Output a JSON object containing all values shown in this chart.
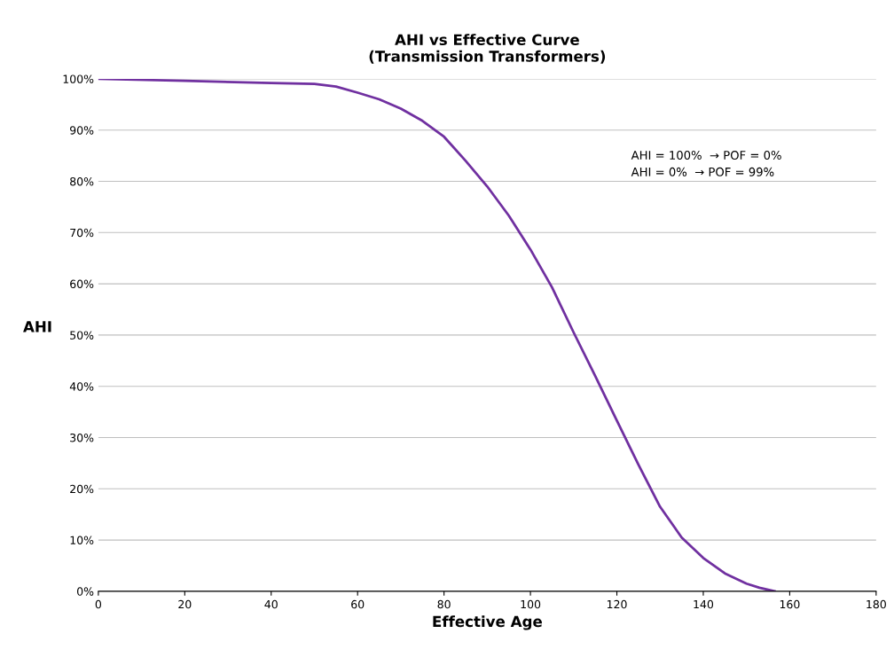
{
  "chart_data": {
    "type": "line",
    "title": "AHI vs Effective Curve\n(Transmission Transformers)",
    "xlabel": "Effective Age",
    "ylabel": "AHI",
    "x": [
      0,
      20,
      40,
      50,
      55,
      60,
      65,
      70,
      75,
      80,
      85,
      90,
      95,
      100,
      105,
      110,
      115,
      120,
      125,
      130,
      135,
      140,
      145,
      150,
      153,
      156.5
    ],
    "series": [
      {
        "color": "#7030a0",
        "values": [
          100,
          99.6,
          99.2,
          99,
          98.5,
          97.3,
          96,
          94.2,
          91.8,
          88.7,
          84,
          79,
          73.3,
          66.7,
          59.3,
          50.5,
          42,
          33.3,
          24.7,
          16.5,
          10.5,
          6.5,
          3.5,
          1.5,
          0.7,
          0
        ]
      }
    ],
    "xlim": [
      0,
      180
    ],
    "xticks": [
      0,
      20,
      40,
      60,
      80,
      100,
      120,
      140,
      160,
      180
    ],
    "ylim": [
      0,
      100
    ],
    "yticks": [
      {
        "value": 0,
        "label": "0%"
      },
      {
        "value": 10,
        "label": "10%"
      },
      {
        "value": 20,
        "label": "20%"
      },
      {
        "value": 30,
        "label": "30%"
      },
      {
        "value": 40,
        "label": "40%"
      },
      {
        "value": 50,
        "label": "50%"
      },
      {
        "value": 60,
        "label": "60%"
      },
      {
        "value": 70,
        "label": "70%"
      },
      {
        "value": 80,
        "label": "80%"
      },
      {
        "value": 90,
        "label": "90%"
      },
      {
        "value": 100,
        "label": "100%"
      }
    ],
    "grid": "y",
    "legend": false,
    "marker": "none",
    "line_style": "solid",
    "annotations": [
      "AHI = 100%  → POF = 0%\nAHI = 0%  → POF = 99%"
    ]
  }
}
